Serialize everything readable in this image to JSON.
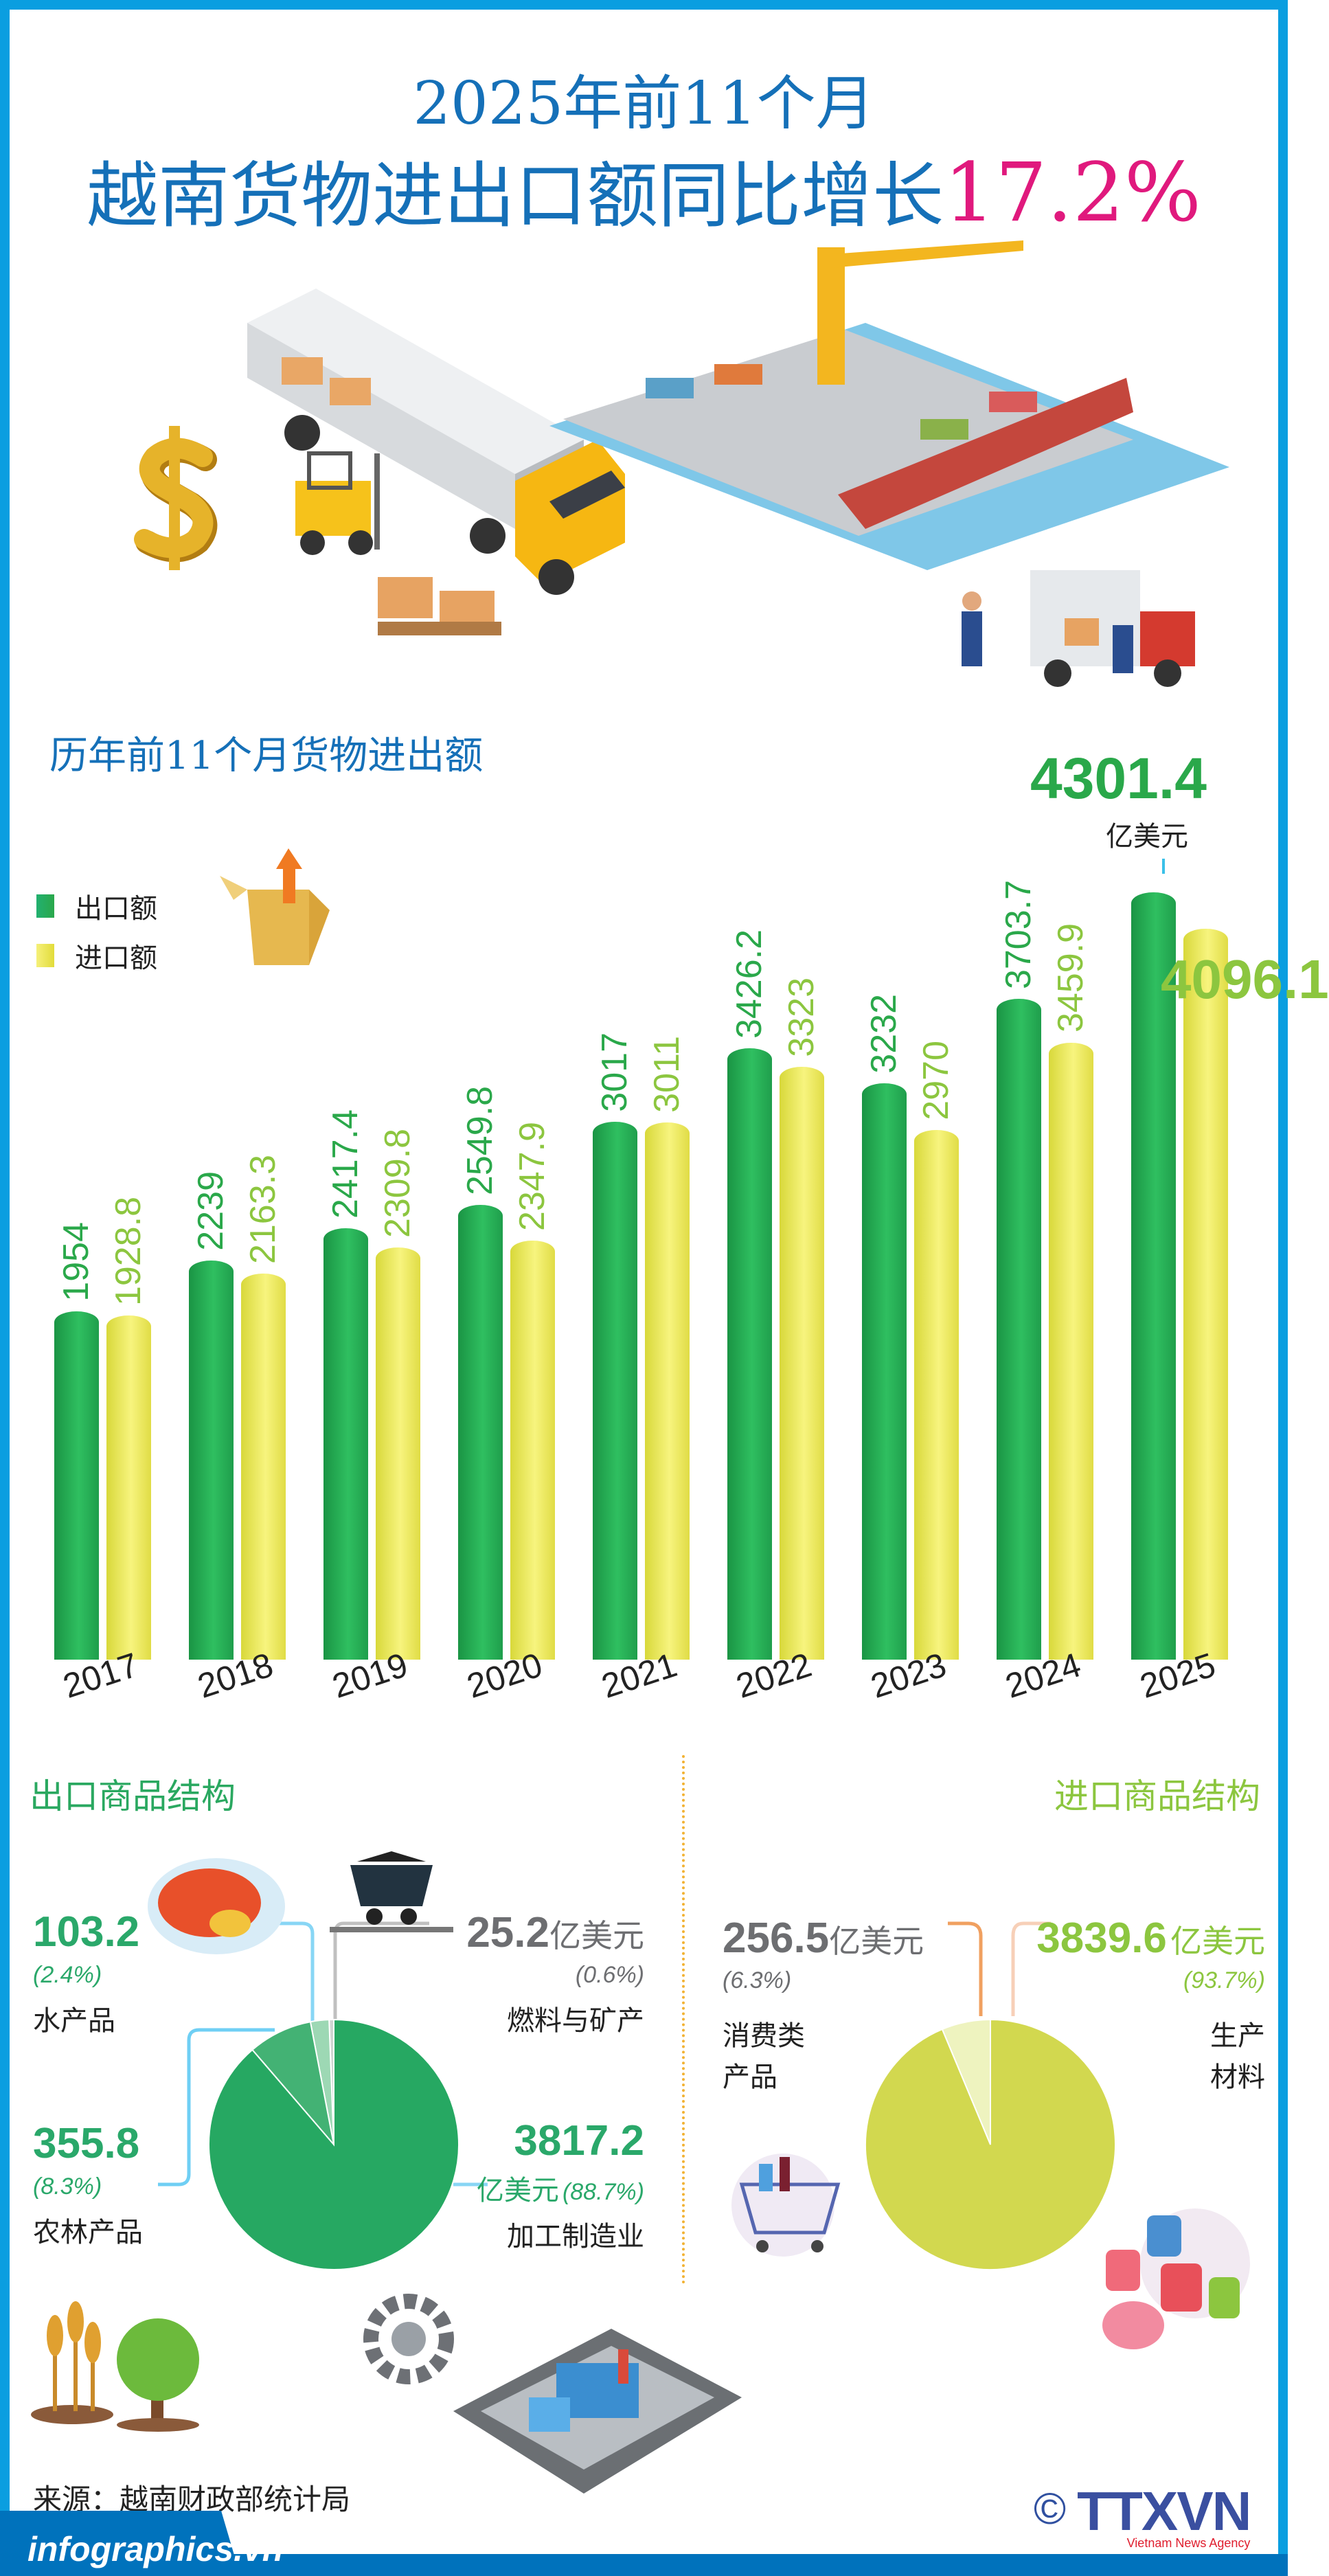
{
  "header": {
    "title_line1": "2025年前11个月",
    "title_line2": "越南货物进出口额同比增长",
    "growth": "17.2%"
  },
  "colors": {
    "title": "#1570b8",
    "highlight": "#e0197d",
    "export": "#2aa84a",
    "import": "#e6e24a",
    "import_text": "#8cc63f",
    "frame": "#0a9ee0"
  },
  "icons": [
    "dollar-icon",
    "truck-icon",
    "forklift-icon",
    "port-icon",
    "delivery-truck-icon",
    "box-icon",
    "seafood-icon",
    "coal-cart-icon",
    "wheat-icon",
    "tree-icon",
    "gear-icon",
    "factory-icon",
    "shopping-cart-icon",
    "thread-spools-icon"
  ],
  "chart_data": [
    {
      "type": "bar",
      "title": "历年前11个月货物进出额",
      "categories": [
        "2017",
        "2018",
        "2019",
        "2020",
        "2021",
        "2022",
        "2023",
        "2024",
        "2025"
      ],
      "series": [
        {
          "name": "出口额",
          "values": [
            1954,
            2239,
            2417.4,
            2549.8,
            3017,
            3426.2,
            3232,
            3703.7,
            4301.4
          ]
        },
        {
          "name": "进口额",
          "values": [
            1928.8,
            2163.3,
            2309.8,
            2347.9,
            3011,
            3323,
            2970,
            3459.9,
            4096.1
          ]
        }
      ],
      "labels": {
        "export": [
          "1954",
          "2239",
          "2417.4",
          "2549.8",
          "3017",
          "3426.2",
          "3232",
          "3703.7",
          "4301.4"
        ],
        "import": [
          "1928.8",
          "2163.3",
          "2309.8",
          "2347.9",
          "3011",
          "3323",
          "2970",
          "3459.9",
          "4096.1"
        ]
      },
      "unit": "亿美元",
      "legend_position": "left",
      "grid": false
    },
    {
      "type": "pie",
      "title": "出口商品结构",
      "slices": [
        {
          "label": "燃料与矿产",
          "value": "25.2",
          "unit": "亿美元",
          "percent": "(0.6%)",
          "share": 0.6,
          "color": "#d0d5d2"
        },
        {
          "label": "水产品",
          "value": "103.2",
          "percent": "(2.4%)",
          "share": 2.4,
          "color": "#9dd8b4"
        },
        {
          "label": "农林产品",
          "value": "355.8",
          "percent": "(8.3%)",
          "share": 8.3,
          "color": "#43b274"
        },
        {
          "label": "加工制造业",
          "value": "3817.2",
          "unit": "亿美元",
          "percent": "(88.7%)",
          "share": 88.7,
          "color": "#26a862"
        }
      ]
    },
    {
      "type": "pie",
      "title": "进口商品结构",
      "slices": [
        {
          "label": "消费类",
          "label2": "产品",
          "value": "256.5",
          "unit": "亿美元",
          "percent": "(6.3%)",
          "share": 6.3,
          "color": "#eef3bf"
        },
        {
          "label": "生产",
          "label2": "材料",
          "value": "3839.6",
          "unit": "亿美元",
          "percent": "(93.7%)",
          "share": 93.7,
          "color": "#d2d84f"
        }
      ]
    }
  ],
  "footer": {
    "source": "来源：越南财政部统计局",
    "site": "infographics.vn",
    "logo_copyright": "©",
    "logo_text_a": "TTX",
    "logo_text_b": "VN",
    "logo_sub": "Vietnam News Agency"
  }
}
